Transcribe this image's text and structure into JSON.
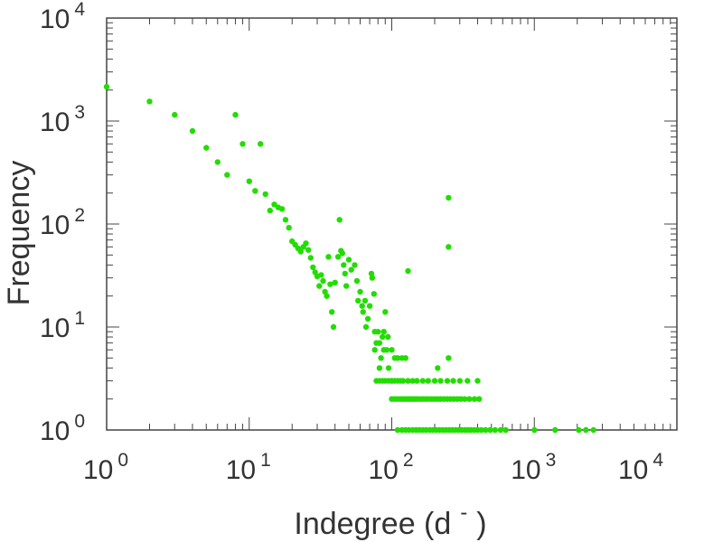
{
  "chart_data": {
    "type": "scatter",
    "title": "",
    "xlabel": "Indegree (d",
    "xlabel_superscript": "-",
    "xlabel_close": ")",
    "ylabel": "Frequency",
    "xscale": "log",
    "yscale": "log",
    "xlim": [
      1,
      10000
    ],
    "ylim": [
      1,
      10000
    ],
    "xtick_labels": [
      {
        "base": "10",
        "exp": "0",
        "value": 1
      },
      {
        "base": "10",
        "exp": "1",
        "value": 10
      },
      {
        "base": "10",
        "exp": "2",
        "value": 100
      },
      {
        "base": "10",
        "exp": "3",
        "value": 1000
      },
      {
        "base": "10",
        "exp": "4",
        "value": 10000
      }
    ],
    "ytick_labels": [
      {
        "base": "10",
        "exp": "0",
        "value": 1
      },
      {
        "base": "10",
        "exp": "1",
        "value": 10
      },
      {
        "base": "10",
        "exp": "2",
        "value": 100
      },
      {
        "base": "10",
        "exp": "3",
        "value": 1000
      },
      {
        "base": "10",
        "exp": "4",
        "value": 10000
      }
    ],
    "grid": false,
    "legend": "none",
    "marker_color": "#22dd00",
    "axis_color": "#444444",
    "series": [
      {
        "points": [
          [
            1.0,
            2150
          ],
          [
            2.0,
            1550
          ],
          [
            3.0,
            1150
          ],
          [
            4.0,
            800
          ],
          [
            5.0,
            550
          ],
          [
            6.0,
            400
          ],
          [
            7.0,
            300
          ],
          [
            8.0,
            1150
          ],
          [
            9.0,
            600
          ],
          [
            12.0,
            600
          ],
          [
            10.0,
            260
          ],
          [
            11.0,
            210
          ],
          [
            13.0,
            195
          ],
          [
            14.0,
            135
          ],
          [
            15.0,
            155
          ],
          [
            16.0,
            145
          ],
          [
            17.0,
            140
          ],
          [
            18.0,
            110
          ],
          [
            19.0,
            92
          ],
          [
            20.0,
            68
          ],
          [
            21.0,
            63
          ],
          [
            22.0,
            58
          ],
          [
            23.0,
            54
          ],
          [
            24.0,
            60
          ],
          [
            25.0,
            65
          ],
          [
            26.0,
            56
          ],
          [
            27.0,
            47
          ],
          [
            28.0,
            38
          ],
          [
            29.0,
            34
          ],
          [
            30.0,
            31
          ],
          [
            31.0,
            25
          ],
          [
            32.0,
            32
          ],
          [
            33.0,
            28
          ],
          [
            34.0,
            22
          ],
          [
            35.0,
            20
          ],
          [
            36.0,
            48
          ],
          [
            37.0,
            26
          ],
          [
            38.0,
            14
          ],
          [
            39.0,
            10
          ],
          [
            40.0,
            27
          ],
          [
            42.0,
            48
          ],
          [
            43.0,
            110
          ],
          [
            44.0,
            55
          ],
          [
            45.0,
            52
          ],
          [
            46.0,
            40
          ],
          [
            47.0,
            33
          ],
          [
            48.0,
            25
          ],
          [
            50.0,
            45
          ],
          [
            52.0,
            36
          ],
          [
            55.0,
            40
          ],
          [
            57.0,
            28
          ],
          [
            58.0,
            18
          ],
          [
            60.0,
            22
          ],
          [
            62.0,
            16
          ],
          [
            63.0,
            14
          ],
          [
            65.0,
            18
          ],
          [
            66.0,
            10
          ],
          [
            68.0,
            12
          ],
          [
            70.0,
            16
          ],
          [
            72.0,
            33
          ],
          [
            73.0,
            30
          ],
          [
            75.0,
            21
          ],
          [
            76.0,
            9
          ],
          [
            78.0,
            7
          ],
          [
            80.0,
            9
          ],
          [
            82.0,
            7
          ],
          [
            84.0,
            5
          ],
          [
            86.0,
            8
          ],
          [
            88.0,
            9
          ],
          [
            90.0,
            14
          ],
          [
            92.0,
            6
          ],
          [
            95.0,
            4
          ],
          [
            100.0,
            3
          ],
          [
            130.0,
            35
          ],
          [
            250.0,
            180
          ],
          [
            250.0,
            60
          ],
          [
            250.0,
            5
          ],
          [
            210.0,
            4
          ],
          [
            76.0,
            6
          ],
          [
            82.0,
            4
          ],
          [
            88.0,
            6
          ],
          [
            94.0,
            8
          ],
          [
            100.0,
            6
          ],
          [
            105.0,
            5
          ],
          [
            110.0,
            5
          ],
          [
            118.0,
            5
          ],
          [
            125.0,
            5
          ],
          [
            78.0,
            3
          ],
          [
            82.0,
            3
          ],
          [
            86.0,
            3
          ],
          [
            90.0,
            3
          ],
          [
            95.0,
            3
          ],
          [
            100.0,
            3
          ],
          [
            105.0,
            3
          ],
          [
            110.0,
            3
          ],
          [
            115.0,
            3
          ],
          [
            120.0,
            3
          ],
          [
            130.0,
            3
          ],
          [
            140.0,
            3
          ],
          [
            150.0,
            3
          ],
          [
            165.0,
            3
          ],
          [
            180.0,
            3
          ],
          [
            200.0,
            3
          ],
          [
            220.0,
            3
          ],
          [
            245.0,
            3
          ],
          [
            270.0,
            3
          ],
          [
            300.0,
            3
          ],
          [
            340.0,
            3
          ],
          [
            400.0,
            3
          ],
          [
            100.0,
            2
          ],
          [
            105.0,
            2
          ],
          [
            110.0,
            2
          ],
          [
            115.0,
            2
          ],
          [
            120.0,
            2
          ],
          [
            125.0,
            2
          ],
          [
            130.0,
            2
          ],
          [
            135.0,
            2
          ],
          [
            140.0,
            2
          ],
          [
            145.0,
            2
          ],
          [
            150.0,
            2
          ],
          [
            158.0,
            2
          ],
          [
            165.0,
            2
          ],
          [
            172.0,
            2
          ],
          [
            180.0,
            2
          ],
          [
            190.0,
            2
          ],
          [
            200.0,
            2
          ],
          [
            210.0,
            2
          ],
          [
            220.0,
            2
          ],
          [
            232.0,
            2
          ],
          [
            245.0,
            2
          ],
          [
            258.0,
            2
          ],
          [
            272.0,
            2
          ],
          [
            288.0,
            2
          ],
          [
            305.0,
            2
          ],
          [
            325.0,
            2
          ],
          [
            350.0,
            2
          ],
          [
            380.0,
            2
          ],
          [
            410.0,
            2
          ],
          [
            110.0,
            1
          ],
          [
            118.0,
            1
          ],
          [
            125.0,
            1
          ],
          [
            132.0,
            1
          ],
          [
            140.0,
            1
          ],
          [
            148.0,
            1
          ],
          [
            156.0,
            1
          ],
          [
            165.0,
            1
          ],
          [
            174.0,
            1
          ],
          [
            184.0,
            1
          ],
          [
            194.0,
            1
          ],
          [
            205.0,
            1
          ],
          [
            216.0,
            1
          ],
          [
            228.0,
            1
          ],
          [
            240.0,
            1
          ],
          [
            253.0,
            1
          ],
          [
            266.0,
            1
          ],
          [
            280.0,
            1
          ],
          [
            295.0,
            1
          ],
          [
            310.0,
            1
          ],
          [
            326.0,
            1
          ],
          [
            343.0,
            1
          ],
          [
            360.0,
            1
          ],
          [
            380.0,
            1
          ],
          [
            400.0,
            1
          ],
          [
            425.0,
            1
          ],
          [
            455.0,
            1
          ],
          [
            490.0,
            1
          ],
          [
            530.0,
            1
          ],
          [
            580.0,
            1
          ],
          [
            630.0,
            1
          ],
          [
            1000.0,
            1
          ],
          [
            1400.0,
            1
          ],
          [
            2050.0,
            1
          ],
          [
            2300.0,
            1
          ],
          [
            2600.0,
            1
          ]
        ]
      }
    ]
  }
}
